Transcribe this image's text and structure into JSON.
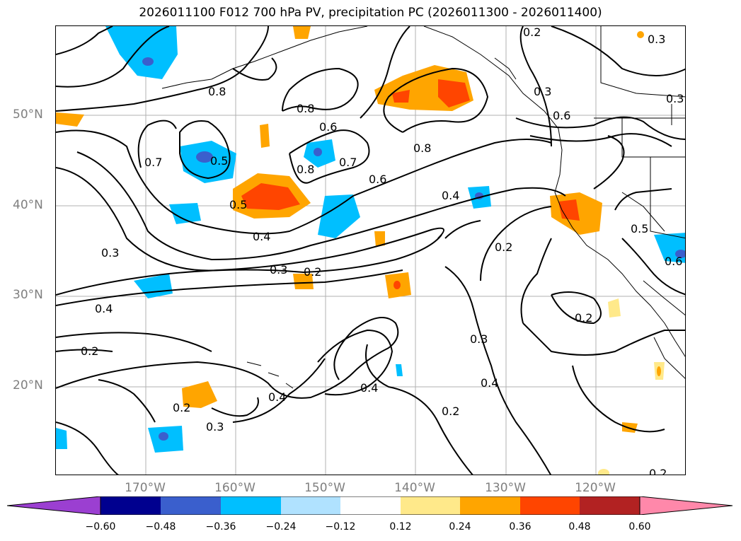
{
  "title": "2026011100 F012 700 hPa PV, precipitation PC (2026011300 - 2026011400)",
  "lat_labels": [
    "50°N",
    "40°N",
    "30°N",
    "20°N"
  ],
  "lon_labels": [
    "170°W",
    "160°W",
    "150°W",
    "140°W",
    "130°W",
    "120°W"
  ],
  "colorbar": {
    "ticks": [
      "−0.60",
      "−0.48",
      "−0.36",
      "−0.24",
      "−0.12",
      "0.12",
      "0.24",
      "0.36",
      "0.48",
      "0.60"
    ],
    "colors": [
      "#9b3fd1",
      "#00008f",
      "#3a5fcd",
      "#00bfff",
      "#b0e2ff",
      "#ffffff",
      "#ffe98a",
      "#ffa500",
      "#ff4500",
      "#b22222",
      "#ff88aa"
    ]
  },
  "contour_labels": [
    "0.8",
    "0.6",
    "0.8",
    "0.8",
    "0.7",
    "0.5",
    "0.8",
    "0.7",
    "0.6",
    "0.4",
    "0.5",
    "0.4",
    "0.3",
    "0.2",
    "0.3",
    "0.4",
    "0.2",
    "0.2",
    "0.3",
    "0.4",
    "0.2",
    "0.4",
    "0.4",
    "0.2",
    "0.3",
    "0.2",
    "0.3",
    "0.3",
    "0.6",
    "0.2",
    "0.3",
    "0.5",
    "0.6",
    "0.2"
  ]
}
